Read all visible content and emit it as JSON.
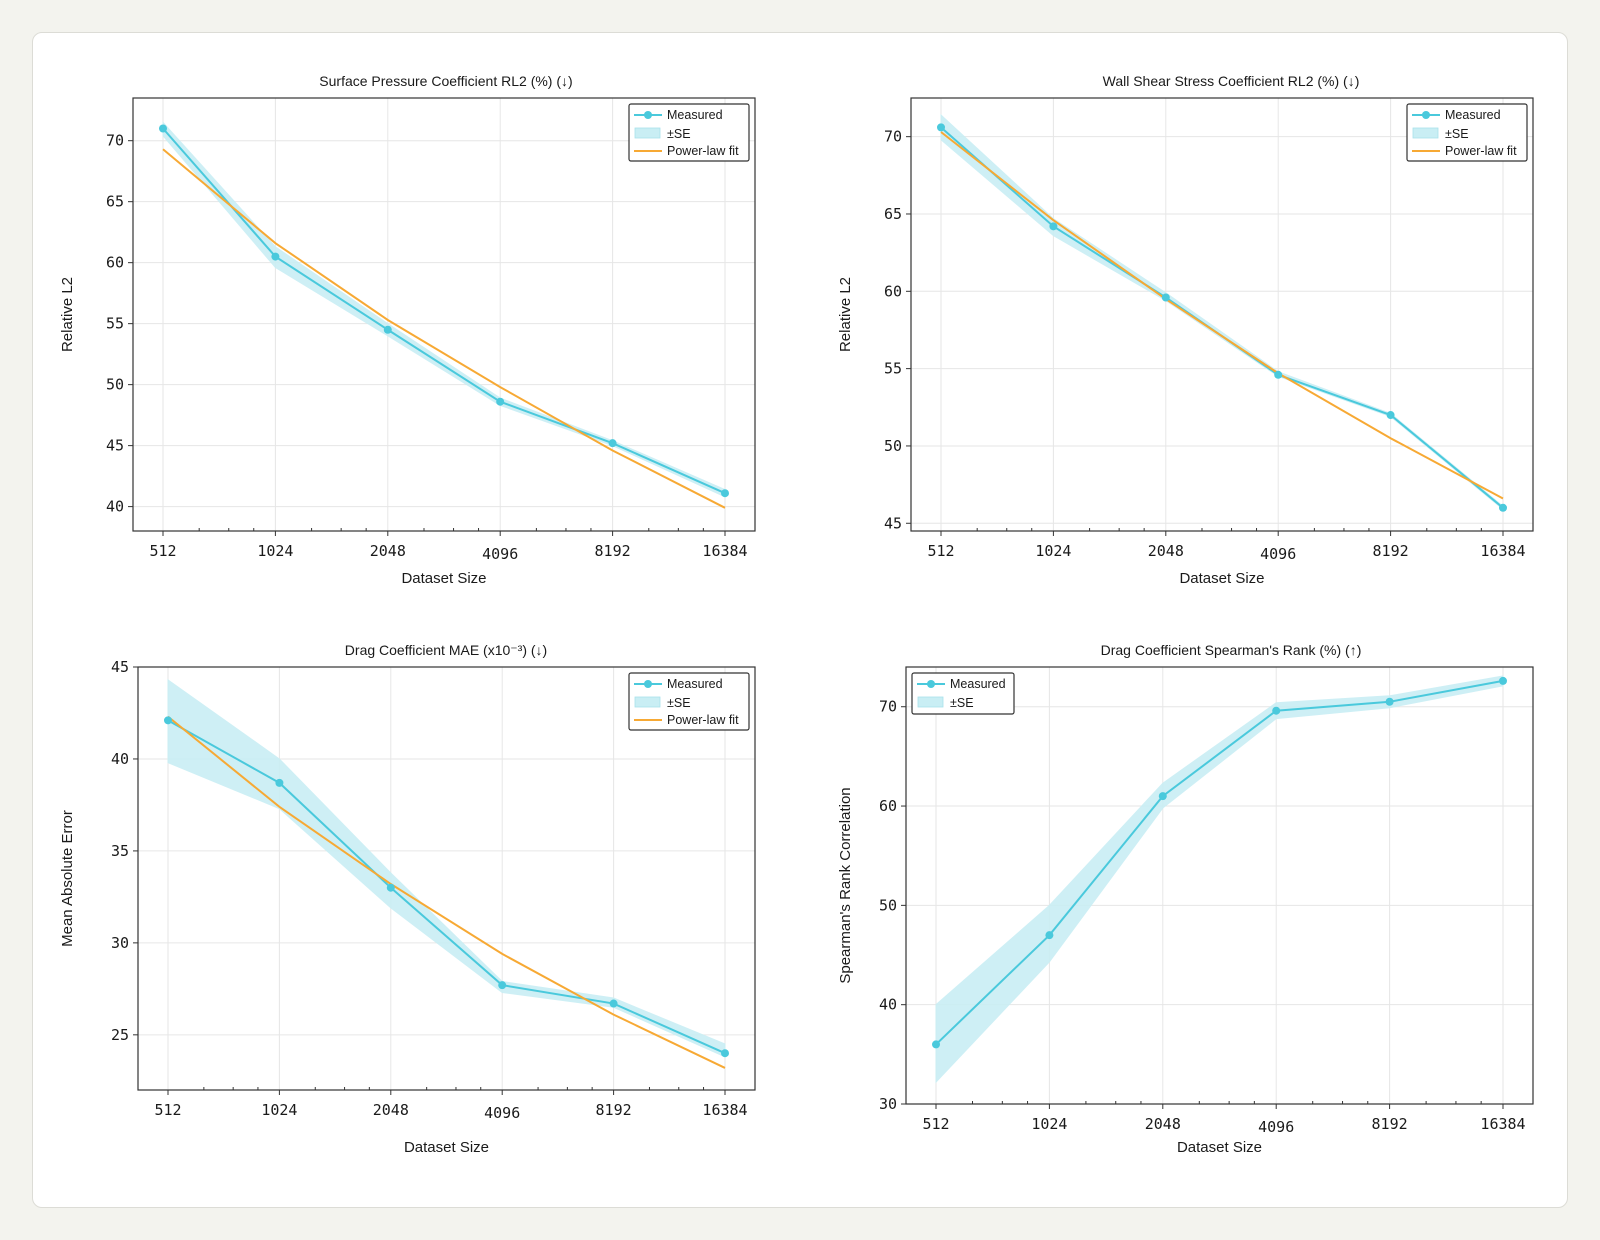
{
  "colors": {
    "measured": "#4ac9dc",
    "band": "#c9eef4",
    "fit": "#f7a934",
    "grid": "#e6e6e6",
    "axis": "#333333"
  },
  "legend": {
    "measured": "Measured",
    "band": "±SE",
    "fit": "Power-law fit"
  },
  "chart_data": [
    {
      "type": "line",
      "title": "Surface Pressure Coefficient RL2 (%) (↓)",
      "xlabel": "Dataset Size",
      "ylabel": "Relative L2",
      "xscale": "log2",
      "x": [
        512,
        1024,
        2048,
        4096,
        8192,
        16384
      ],
      "xticks": [
        "512",
        "1024",
        "2048",
        "4096",
        "8192",
        "16384"
      ],
      "yticks": [
        40,
        45,
        50,
        55,
        60,
        65,
        70
      ],
      "ylim": [
        38,
        73.5
      ],
      "series": [
        {
          "name": "Measured",
          "values": [
            71.0,
            60.5,
            54.5,
            48.6,
            45.2,
            41.1
          ],
          "se_lower": [
            70.4,
            59.6,
            54.0,
            48.3,
            45.0,
            40.8
          ],
          "se_upper": [
            71.5,
            61.3,
            55.0,
            48.9,
            45.4,
            41.4
          ]
        },
        {
          "name": "Power-law fit",
          "values": [
            69.3,
            61.6,
            55.3,
            49.8,
            44.6,
            39.9
          ]
        }
      ],
      "legend_position": "top-right"
    },
    {
      "type": "line",
      "title": "Wall Shear Stress Coefficient RL2 (%) (↓)",
      "xlabel": "Dataset Size",
      "ylabel": "Relative L2",
      "xscale": "log2",
      "x": [
        512,
        1024,
        2048,
        4096,
        8192,
        16384
      ],
      "xticks": [
        "512",
        "1024",
        "2048",
        "4096",
        "8192",
        "16384"
      ],
      "yticks": [
        45,
        50,
        55,
        60,
        65,
        70
      ],
      "ylim": [
        44.5,
        72.5
      ],
      "series": [
        {
          "name": "Measured",
          "values": [
            70.6,
            64.2,
            59.6,
            54.6,
            52.0,
            46.0
          ],
          "se_lower": [
            69.8,
            63.6,
            59.4,
            54.5,
            51.9,
            45.9
          ],
          "se_upper": [
            71.4,
            64.7,
            59.9,
            54.8,
            52.1,
            46.1
          ]
        },
        {
          "name": "Power-law fit",
          "values": [
            70.3,
            64.6,
            59.5,
            54.7,
            50.5,
            46.6
          ]
        }
      ],
      "legend_position": "top-right"
    },
    {
      "type": "line",
      "title": "Drag Coefficient MAE (x10⁻³) (↓)",
      "xlabel": "Dataset Size",
      "ylabel": "Mean Absolute Error",
      "xscale": "log2",
      "x": [
        512,
        1024,
        2048,
        4096,
        8192,
        16384
      ],
      "xticks": [
        "512",
        "1024",
        "2048",
        "4096",
        "8192",
        "16384"
      ],
      "yticks": [
        25,
        30,
        35,
        40,
        45
      ],
      "ylim": [
        22,
        45
      ],
      "series": [
        {
          "name": "Measured",
          "values": [
            42.1,
            38.7,
            33.0,
            27.7,
            26.7,
            24.0
          ],
          "se_lower": [
            39.8,
            37.3,
            31.9,
            27.3,
            26.5,
            23.8
          ],
          "se_upper": [
            44.3,
            40.0,
            33.8,
            27.9,
            27.0,
            24.5
          ]
        },
        {
          "name": "Power-law fit",
          "values": [
            42.3,
            37.4,
            33.2,
            29.4,
            26.1,
            23.2
          ]
        }
      ],
      "legend_position": "top-right"
    },
    {
      "type": "line",
      "title": "Drag Coefficient Spearman's Rank (%) (↑)",
      "xlabel": "Dataset Size",
      "ylabel": "Spearman's Rank Correlation",
      "xscale": "log2",
      "x": [
        512,
        1024,
        2048,
        4096,
        8192,
        16384
      ],
      "xticks": [
        "512",
        "1024",
        "2048",
        "4096",
        "8192",
        "16384"
      ],
      "yticks": [
        30,
        40,
        50,
        60,
        70
      ],
      "ylim": [
        30,
        74
      ],
      "series": [
        {
          "name": "Measured",
          "values": [
            36.0,
            47.0,
            61.0,
            69.6,
            70.5,
            72.6
          ],
          "se_lower": [
            32.2,
            44.3,
            59.8,
            68.8,
            69.9,
            72.1
          ],
          "se_upper": [
            40.0,
            50.0,
            62.3,
            70.4,
            71.1,
            73.1
          ]
        }
      ],
      "legend_position": "top-left"
    }
  ]
}
